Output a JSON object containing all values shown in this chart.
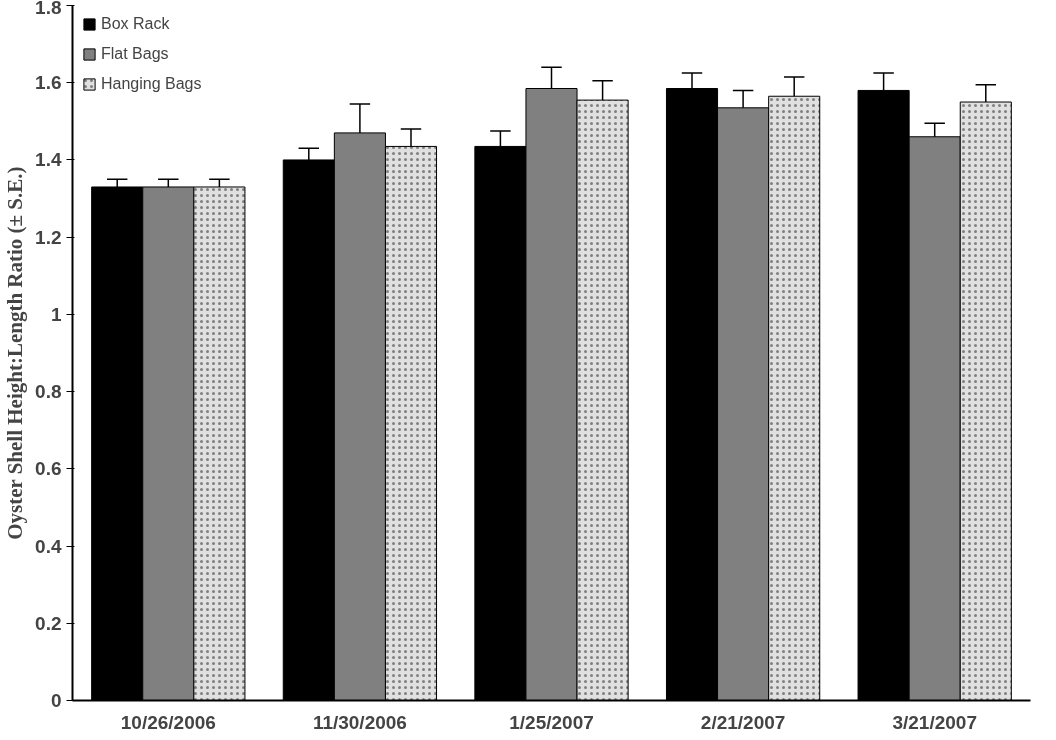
{
  "chart_data": {
    "type": "bar",
    "ylabel": "Oyster Shell Height:Length Ratio (± S.E.)",
    "categories": [
      "10/26/2006",
      "11/30/2006",
      "1/25/2007",
      "2/21/2007",
      "3/21/2007"
    ],
    "series": [
      {
        "name": "Box Rack",
        "color": "#000000",
        "values": [
          1.33,
          1.4,
          1.435,
          1.585,
          1.58
        ],
        "errors": [
          [
            1.33,
            1.35
          ],
          [
            1.4,
            1.43
          ],
          [
            1.435,
            1.475
          ],
          [
            1.585,
            1.625
          ],
          [
            1.58,
            1.625
          ]
        ]
      },
      {
        "name": "Flat Bags",
        "color": "#808080",
        "values": [
          1.33,
          1.47,
          1.585,
          1.535,
          1.46
        ],
        "errors": [
          [
            1.33,
            1.35
          ],
          [
            1.47,
            1.545
          ],
          [
            1.585,
            1.64
          ],
          [
            1.535,
            1.58
          ],
          [
            1.46,
            1.495
          ]
        ]
      },
      {
        "name": "Hanging Bags",
        "color": "#e0e0e0",
        "values": [
          1.33,
          1.435,
          1.555,
          1.565,
          1.55
        ],
        "errors": [
          [
            1.33,
            1.35
          ],
          [
            1.435,
            1.48
          ],
          [
            1.555,
            1.605
          ],
          [
            1.565,
            1.615
          ],
          [
            1.55,
            1.595
          ]
        ]
      }
    ],
    "ylim": [
      0,
      1.8
    ],
    "yticks": [
      0,
      0.2,
      0.4,
      0.6,
      0.8,
      1,
      1.2,
      1.4,
      1.6,
      1.8
    ],
    "grid": false,
    "legend": "top left"
  }
}
